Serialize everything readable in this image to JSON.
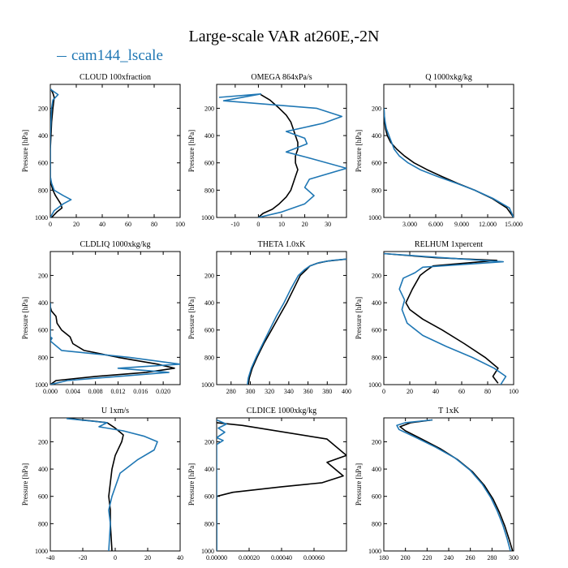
{
  "title": "Large-scale VAR at260E,-2N",
  "legend": {
    "label": "cam144_lscale",
    "color": "#1f77b4"
  },
  "colors": {
    "black_series": "#000000",
    "blue_series": "#1f77b4"
  },
  "ylabel": "Pressure [hPa]",
  "chart_data": [
    {
      "type": "line",
      "title": "CLOUD  100xfraction",
      "xlim": [
        0,
        100
      ],
      "ylim": [
        1000,
        25
      ],
      "yticks": [
        200,
        400,
        600,
        800,
        1000
      ],
      "xticks": [
        0,
        20,
        40,
        60,
        80,
        100
      ],
      "xticklabels": [
        "0",
        "20",
        "40",
        "60",
        "80",
        "100"
      ],
      "series": [
        {
          "color": "#000000",
          "x": [
            0.5,
            2,
            3,
            2,
            1,
            0.5,
            0,
            0,
            0,
            0.5,
            2,
            4,
            6,
            8,
            9,
            5,
            1
          ],
          "y": [
            60,
            90,
            120,
            200,
            300,
            400,
            500,
            600,
            700,
            750,
            800,
            840,
            870,
            900,
            930,
            960,
            1000
          ]
        },
        {
          "color": "#1f77b4",
          "name": "cam144_lscale",
          "x": [
            0,
            6,
            2,
            1,
            0.5,
            0,
            0,
            0,
            0,
            1,
            3,
            10,
            16,
            10,
            3,
            0
          ],
          "y": [
            60,
            100,
            140,
            200,
            300,
            400,
            500,
            600,
            700,
            750,
            800,
            840,
            870,
            900,
            950,
            1000
          ]
        }
      ]
    },
    {
      "type": "line",
      "title": "OMEGA  864xPa/s",
      "xlim": [
        -18,
        38
      ],
      "ylim": [
        1000,
        25
      ],
      "yticks": [
        200,
        400,
        600,
        800,
        1000
      ],
      "xticks": [
        -10,
        0,
        10,
        20,
        30
      ],
      "xticklabels": [
        "-10",
        "0",
        "10",
        "20",
        "30"
      ],
      "series": [
        {
          "color": "#000000",
          "x": [
            1,
            5,
            9,
            12,
            14,
            15,
            16,
            17,
            17,
            16,
            16,
            17,
            16,
            15,
            14,
            12,
            9,
            6,
            2,
            0
          ],
          "y": [
            100,
            140,
            200,
            250,
            300,
            350,
            400,
            450,
            500,
            550,
            600,
            650,
            700,
            750,
            800,
            850,
            900,
            940,
            970,
            1000
          ]
        },
        {
          "color": "#1f77b4",
          "name": "cam144_lscale",
          "x": [
            -17,
            1,
            -15,
            25,
            36,
            28,
            12,
            20,
            21,
            12,
            21,
            38,
            22,
            20,
            24,
            20,
            10,
            0
          ],
          "y": [
            120,
            95,
            145,
            200,
            260,
            310,
            370,
            420,
            460,
            520,
            560,
            640,
            720,
            780,
            840,
            900,
            960,
            1000
          ]
        }
      ]
    },
    {
      "type": "line",
      "title": "Q  1000xkg/kg",
      "xlim": [
        0,
        15
      ],
      "ylim": [
        1000,
        25
      ],
      "yticks": [
        200,
        400,
        600,
        800,
        1000
      ],
      "xticks": [
        3,
        6,
        9,
        12,
        15
      ],
      "xticklabels": [
        "3.000",
        "6.000",
        "9.000",
        "12.000",
        "15.000"
      ],
      "series": [
        {
          "color": "#000000",
          "x": [
            0.02,
            0.05,
            0.1,
            0.2,
            0.4,
            0.8,
            1.5,
            2.4,
            3.5,
            5,
            6.7,
            8.5,
            10.5,
            12.5,
            14.2,
            15
          ],
          "y": [
            200,
            250,
            300,
            350,
            400,
            450,
            500,
            550,
            600,
            650,
            700,
            750,
            800,
            860,
            930,
            1000
          ]
        },
        {
          "color": "#1f77b4",
          "name": "cam144_lscale",
          "x": [
            0.02,
            0.06,
            0.15,
            0.3,
            0.6,
            0.9,
            1.2,
            1.8,
            2.8,
            4.2,
            6.2,
            8.4,
            10.5,
            12.6,
            14.5,
            15
          ],
          "y": [
            200,
            250,
            300,
            350,
            400,
            450,
            500,
            550,
            600,
            650,
            700,
            750,
            800,
            860,
            930,
            1000
          ]
        }
      ]
    },
    {
      "type": "line",
      "title": "CLDLIQ  1000xkg/kg",
      "xlim": [
        0,
        0.023
      ],
      "ylim": [
        1000,
        25
      ],
      "yticks": [
        200,
        400,
        600,
        800,
        1000
      ],
      "xticks": [
        0,
        0.004,
        0.008,
        0.012,
        0.016,
        0.02
      ],
      "xticklabels": [
        "0.000",
        "0.004",
        "0.008",
        "0.012",
        "0.016",
        "0.020"
      ],
      "series": [
        {
          "color": "#000000",
          "x": [
            0,
            0,
            0.0002,
            0.001,
            0.0012,
            0.002,
            0.0035,
            0.004,
            0.006,
            0.012,
            0.019,
            0.022,
            0.017,
            0.008,
            0.001,
            0
          ],
          "y": [
            400,
            430,
            460,
            500,
            550,
            600,
            650,
            700,
            750,
            800,
            850,
            880,
            910,
            940,
            970,
            1000
          ]
        },
        {
          "color": "#1f77b4",
          "name": "cam144_lscale",
          "x": [
            0,
            0,
            0,
            0,
            0.0003,
            0,
            0.002,
            0.014,
            0.023,
            0.012,
            0.021,
            0.012,
            0.003,
            0
          ],
          "y": [
            400,
            500,
            600,
            650,
            660,
            680,
            750,
            800,
            850,
            880,
            910,
            940,
            970,
            1000
          ]
        }
      ]
    },
    {
      "type": "line",
      "title": "THETA  1.0xK",
      "xlim": [
        265,
        400
      ],
      "ylim": [
        1000,
        25
      ],
      "yticks": [
        200,
        400,
        600,
        800,
        1000
      ],
      "xticks": [
        280,
        300,
        320,
        340,
        360,
        380,
        400
      ],
      "xticklabels": [
        "280",
        "300",
        "320",
        "340",
        "360",
        "380",
        "400"
      ],
      "series": [
        {
          "color": "#000000",
          "x": [
            400,
            380,
            370,
            362,
            358,
            352,
            345,
            338,
            330,
            322,
            314,
            307,
            302,
            299,
            298
          ],
          "y": [
            80,
            95,
            110,
            130,
            160,
            200,
            300,
            400,
            500,
            600,
            700,
            800,
            880,
            950,
            1000
          ]
        },
        {
          "color": "#1f77b4",
          "name": "cam144_lscale",
          "x": [
            400,
            385,
            372,
            362,
            356,
            350,
            342,
            335,
            327,
            320,
            313,
            306,
            301,
            298,
            297
          ],
          "y": [
            80,
            90,
            105,
            130,
            160,
            200,
            300,
            400,
            500,
            600,
            700,
            800,
            880,
            950,
            1000
          ]
        }
      ]
    },
    {
      "type": "line",
      "title": "RELHUM  1xpercent",
      "xlim": [
        0,
        100
      ],
      "ylim": [
        1000,
        25
      ],
      "yticks": [
        200,
        400,
        600,
        800,
        1000
      ],
      "xticks": [
        0,
        20,
        40,
        60,
        80,
        100
      ],
      "xticklabels": [
        "0",
        "20",
        "40",
        "60",
        "80",
        "100"
      ],
      "series": [
        {
          "color": "#000000",
          "x": [
            0,
            40,
            87,
            38,
            32,
            28,
            22,
            17,
            20,
            30,
            45,
            62,
            78,
            88,
            84,
            88
          ],
          "y": [
            40,
            70,
            90,
            130,
            170,
            200,
            300,
            400,
            450,
            520,
            600,
            700,
            800,
            880,
            940,
            990
          ]
        },
        {
          "color": "#1f77b4",
          "name": "cam144_lscale",
          "x": [
            0,
            30,
            92,
            30,
            24,
            15,
            12,
            16,
            14,
            18,
            30,
            48,
            68,
            85,
            94,
            90
          ],
          "y": [
            40,
            60,
            100,
            140,
            180,
            220,
            300,
            380,
            450,
            550,
            640,
            720,
            800,
            880,
            940,
            1000
          ]
        }
      ]
    },
    {
      "type": "line",
      "title": "U  1xm/s",
      "xlim": [
        -40,
        40
      ],
      "ylim": [
        1000,
        25
      ],
      "yticks": [
        200,
        400,
        600,
        800,
        1000
      ],
      "xticks": [
        -40,
        -20,
        0,
        20,
        40
      ],
      "xticklabels": [
        "-40",
        "-20",
        "0",
        "20",
        "40"
      ],
      "series": [
        {
          "color": "#000000",
          "x": [
            -28,
            -5,
            0,
            5,
            4,
            0,
            -2,
            -3,
            -4,
            -3,
            -3,
            -2
          ],
          "y": [
            30,
            60,
            100,
            150,
            200,
            300,
            400,
            500,
            600,
            700,
            800,
            1000
          ]
        },
        {
          "color": "#1f77b4",
          "name": "cam144_lscale",
          "x": [
            -30,
            -5,
            -10,
            5,
            18,
            26,
            24,
            14,
            3,
            -2,
            -4,
            -3,
            -4
          ],
          "y": [
            30,
            60,
            90,
            120,
            160,
            200,
            260,
            330,
            430,
            600,
            700,
            800,
            1000
          ]
        }
      ]
    },
    {
      "type": "line",
      "title": "CLDICE  1000xkg/kg",
      "xlim": [
        0,
        0.0008
      ],
      "ylim": [
        1000,
        25
      ],
      "yticks": [
        200,
        400,
        600,
        800,
        1000
      ],
      "xticks": [
        0,
        0.0002,
        0.0004,
        0.0006
      ],
      "xticklabels": [
        "0.00000",
        "0.00020",
        "0.00040",
        "0.00060"
      ],
      "series": [
        {
          "color": "#000000",
          "x": [
            0,
            0.00016,
            0.00068,
            0.0008,
            0.00068,
            0.00078,
            0.00065,
            0.0004,
            0.0001,
            0,
            0,
            0
          ],
          "y": [
            60,
            80,
            180,
            300,
            350,
            450,
            500,
            530,
            570,
            600,
            800,
            1000
          ]
        },
        {
          "color": "#1f77b4",
          "name": "cam144_lscale",
          "x": [
            0,
            6e-05,
            1e-05,
            5e-05,
            0,
            4e-05,
            0,
            0,
            0,
            0
          ],
          "y": [
            40,
            70,
            100,
            130,
            170,
            190,
            220,
            300,
            600,
            1000
          ]
        }
      ]
    },
    {
      "type": "line",
      "title": "T  1xK",
      "xlim": [
        180,
        300
      ],
      "ylim": [
        1000,
        25
      ],
      "yticks": [
        200,
        400,
        600,
        800,
        1000
      ],
      "xticks": [
        180,
        200,
        220,
        240,
        260,
        280,
        300
      ],
      "xticklabels": [
        "180",
        "200",
        "220",
        "240",
        "260",
        "280",
        "300"
      ],
      "series": [
        {
          "color": "#000000",
          "x": [
            225,
            205,
            195,
            200,
            215,
            232,
            248,
            262,
            273,
            281,
            287,
            292,
            296,
            299
          ],
          "y": [
            40,
            60,
            90,
            120,
            180,
            250,
            330,
            420,
            520,
            620,
            720,
            820,
            920,
            1000
          ]
        },
        {
          "color": "#1f77b4",
          "name": "cam144_lscale",
          "x": [
            225,
            200,
            192,
            194,
            210,
            228,
            246,
            260,
            271,
            279,
            285,
            290,
            294,
            297
          ],
          "y": [
            40,
            60,
            80,
            110,
            170,
            240,
            320,
            410,
            510,
            610,
            710,
            810,
            910,
            1000
          ]
        }
      ]
    }
  ]
}
